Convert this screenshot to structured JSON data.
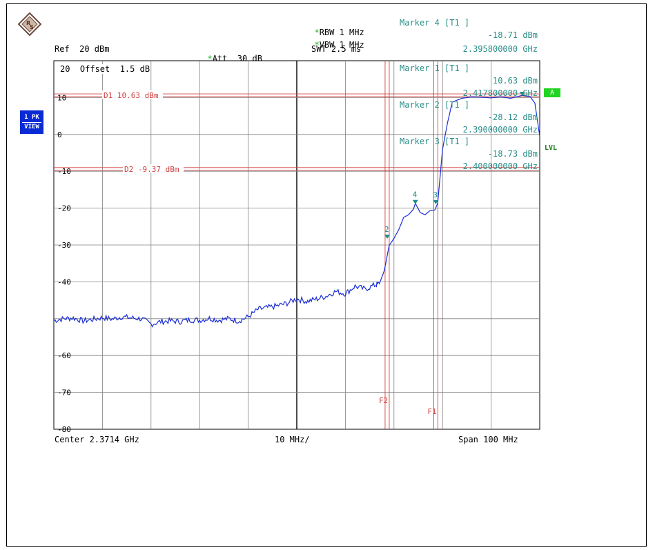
{
  "header": {
    "rbw": {
      "marker": "*",
      "text": "RBW 1 MHz"
    },
    "vbw": {
      "marker": "*",
      "text": "VBW 1 MHz"
    },
    "swt": "SWT 2.5 ms",
    "ref": "Ref  20 dBm",
    "att": {
      "marker": "*",
      "text": "Att  30 dB"
    },
    "marker4_title": "Marker 4 [T1 ]",
    "marker4_level": "-18.71 dBm",
    "marker4_freq": "2.395800000 GHz"
  },
  "offset_label": "20  Offset  1.5 dB",
  "marker_box": [
    {
      "title": "Marker 1 [T1 ]",
      "level": "10.63 dBm",
      "freq": "2.417800000 GHz"
    },
    {
      "title": "Marker 2 [T1 ]",
      "level": "-28.12 dBm",
      "freq": "2.390000000 GHz"
    },
    {
      "title": "Marker 3 [T1 ]",
      "level": "-18.73 dBm",
      "freq": "2.400000000 GHz"
    }
  ],
  "side_badges": {
    "trace_line1": "1 PK",
    "trace_line2": "VIEW",
    "channel": "A",
    "lvl": "LVL"
  },
  "footer": {
    "center": "Center 2.3714 GHz",
    "div": "10 MHz/",
    "span": "Span 100 MHz"
  },
  "colors": {
    "trace": "#1a2ed6",
    "marker": "#1d8f86",
    "lines": "#d04040",
    "grid": "#808080"
  },
  "chart_data": {
    "type": "line",
    "xlim_ghz": [
      2.3214,
      2.4214
    ],
    "ylim_dbm": [
      -80,
      20
    ],
    "y_tick_labels": [
      {
        "value": 20,
        "label": "20"
      },
      {
        "value": 10,
        "label": "10"
      },
      {
        "value": 0,
        "label": "0"
      },
      {
        "value": -10,
        "label": "-10"
      },
      {
        "value": -20,
        "label": "-20"
      },
      {
        "value": -30,
        "label": "-30"
      },
      {
        "value": -40,
        "label": "-40"
      },
      {
        "value": -60,
        "label": "-60"
      },
      {
        "value": -70,
        "label": "-70"
      },
      {
        "value": -80,
        "label": "-80"
      }
    ],
    "grid": true,
    "display_lines": [
      {
        "label": "D1 10.63 dBm",
        "value": 10.63
      },
      {
        "label": "D2 -9.37 dBm",
        "value": -9.37
      }
    ],
    "freq_lines": [
      {
        "label": "F2",
        "value": 2.39
      },
      {
        "label": "F1",
        "value": 2.4
      }
    ],
    "markers": [
      {
        "label": "1",
        "x": 2.4178,
        "y": 10.63
      },
      {
        "label": "2",
        "x": 2.39,
        "y": -28.12
      },
      {
        "label": "3",
        "x": 2.4,
        "y": -18.73
      },
      {
        "label": "4",
        "x": 2.3958,
        "y": -18.71
      }
    ],
    "series": [
      {
        "x": [
          2.3214,
          2.3234,
          2.3254,
          2.3274,
          2.3294,
          2.3314,
          2.3334,
          2.3354,
          2.3374,
          2.3394,
          2.3414,
          2.3434,
          2.3454,
          2.3474,
          2.3494,
          2.3514,
          2.3534,
          2.3554,
          2.3574,
          2.3594,
          2.3614,
          2.3634,
          2.3654,
          2.3674,
          2.3694,
          2.3714,
          2.3734,
          2.3754,
          2.3774,
          2.3794,
          2.3814,
          2.3834,
          2.3854,
          2.3874,
          2.3884,
          2.3894,
          2.3904,
          2.3914,
          2.3924,
          2.3934,
          2.3944,
          2.3954,
          2.3958,
          2.3968,
          2.3978,
          2.3988,
          2.3998,
          2.4004,
          2.4014,
          2.4024,
          2.4034,
          2.4054,
          2.4074,
          2.4094,
          2.4114,
          2.4134,
          2.4154,
          2.4178,
          2.4194,
          2.4204,
          2.4214
        ],
        "y": [
          -50.5,
          -50.0,
          -49.8,
          -50.6,
          -50.2,
          -49.7,
          -50.1,
          -49.5,
          -49.8,
          -50.0,
          -51.5,
          -50.8,
          -50.6,
          -50.8,
          -50.3,
          -50.4,
          -49.9,
          -50.4,
          -50.0,
          -50.6,
          -49.5,
          -47.5,
          -47.0,
          -46.5,
          -45.8,
          -44.6,
          -45.3,
          -44.7,
          -43.9,
          -42.6,
          -43.2,
          -41.2,
          -42.0,
          -40.9,
          -40.5,
          -37.0,
          -30.2,
          -28.2,
          -25.8,
          -22.5,
          -21.8,
          -20.3,
          -18.7,
          -21.2,
          -21.8,
          -20.7,
          -20.5,
          -18.7,
          -4.0,
          3.0,
          8.8,
          9.8,
          10.2,
          10.1,
          9.9,
          10.2,
          9.8,
          10.6,
          10.3,
          8.5,
          -0.5
        ]
      }
    ]
  }
}
